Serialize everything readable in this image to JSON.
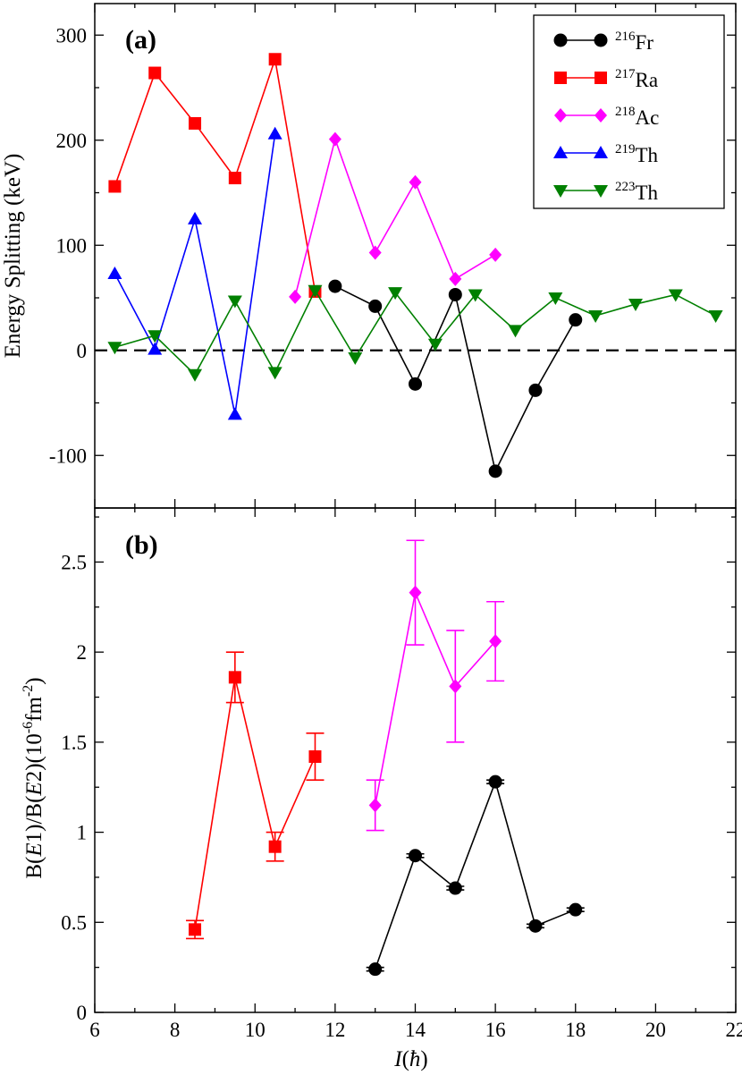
{
  "chart_data": [
    {
      "type": "line",
      "panel_label": "(a)",
      "ylabel": "Energy Splitting (keV)",
      "xlabel": "",
      "xlim": [
        6,
        22
      ],
      "ylim": [
        -150,
        330
      ],
      "y_ticks": [
        -100,
        0,
        100,
        200,
        300
      ],
      "y_tick_labels": [
        "-100",
        "0",
        "100",
        "200",
        "300"
      ],
      "zero_line": true,
      "legend_position": "top-right",
      "series": [
        {
          "name": "216Fr",
          "mass": "216",
          "element": "Fr",
          "color": "#000000",
          "marker": "circle",
          "x": [
            12,
            13,
            14,
            15,
            16,
            17,
            18
          ],
          "y": [
            61,
            42,
            -32,
            53,
            -115,
            -38,
            29
          ]
        },
        {
          "name": "217Ra",
          "mass": "217",
          "element": "Ra",
          "color": "#ff0000",
          "marker": "square",
          "x": [
            6.5,
            7.5,
            8.5,
            9.5,
            10.5,
            11.5
          ],
          "y": [
            156,
            264,
            216,
            164,
            277,
            56
          ]
        },
        {
          "name": "218Ac",
          "mass": "218",
          "element": "Ac",
          "color": "#ff00ff",
          "marker": "diamond",
          "x": [
            11,
            12,
            13,
            14,
            15,
            16
          ],
          "y": [
            51,
            201,
            93,
            160,
            68,
            91
          ]
        },
        {
          "name": "219Th",
          "mass": "219",
          "element": "Th",
          "color": "#0000ff",
          "marker": "triangle-up",
          "x": [
            6.5,
            7.5,
            8.5,
            9.5,
            10.5
          ],
          "y": [
            73,
            1,
            125,
            -61,
            206
          ]
        },
        {
          "name": "223Th",
          "mass": "223",
          "element": "Th",
          "color": "#008000",
          "marker": "triangle-down",
          "x": [
            6.5,
            7.5,
            8.5,
            9.5,
            10.5,
            11.5,
            12.5,
            13.5,
            14.5,
            15.5,
            16.5,
            17.5,
            18.5,
            19.5,
            20.5,
            21.5
          ],
          "y": [
            3,
            14,
            -23,
            47,
            -21,
            57,
            -7,
            55,
            6,
            53,
            19,
            50,
            33,
            44,
            53,
            33
          ]
        }
      ]
    },
    {
      "type": "line",
      "panel_label": "(b)",
      "ylabel": "B(E1)/B(E2)(10^-6 fm^-2)",
      "xlabel": "I(ħ)",
      "xlim": [
        6,
        22
      ],
      "ylim": [
        0,
        2.8
      ],
      "x_ticks": [
        6,
        8,
        10,
        12,
        14,
        16,
        18,
        20,
        22
      ],
      "x_tick_labels": [
        "6",
        "8",
        "10",
        "12",
        "14",
        "16",
        "18",
        "20",
        "22"
      ],
      "y_ticks": [
        0,
        0.5,
        1,
        1.5,
        2,
        2.5
      ],
      "y_tick_labels": [
        "0",
        "0.5",
        "1",
        "1.5",
        "2",
        "2.5"
      ],
      "series": [
        {
          "name": "216Fr",
          "color": "#000000",
          "marker": "circle",
          "x": [
            13,
            14,
            15,
            16,
            17,
            18
          ],
          "y": [
            0.24,
            0.87,
            0.69,
            1.28,
            0.48,
            0.57
          ],
          "err": [
            0.01,
            0.01,
            0.01,
            0.01,
            0.01,
            0.01
          ]
        },
        {
          "name": "217Ra",
          "color": "#ff0000",
          "marker": "square",
          "x": [
            8.5,
            9.5,
            10.5,
            11.5
          ],
          "y": [
            0.46,
            1.86,
            0.92,
            1.42
          ],
          "err": [
            0.05,
            0.14,
            0.08,
            0.13
          ]
        },
        {
          "name": "218Ac",
          "color": "#ff00ff",
          "marker": "diamond",
          "x": [
            13,
            14,
            15,
            16
          ],
          "y": [
            1.15,
            2.33,
            1.81,
            2.06
          ],
          "err": [
            0.14,
            0.29,
            0.31,
            0.22
          ]
        }
      ]
    }
  ]
}
